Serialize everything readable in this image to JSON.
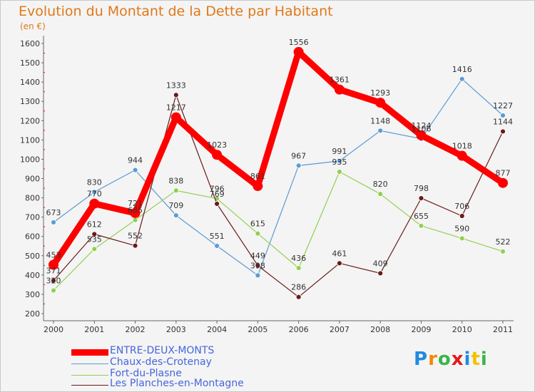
{
  "title": "Evolution du Montant de la Dette par Habitant",
  "subtitle": "(en €)",
  "logo": {
    "text": "Proxiti",
    "colors": [
      "#1f8be0",
      "#f08a00",
      "#3cb44a",
      "#e5191d",
      "#1f8be0",
      "#f0c300",
      "#3cb44a"
    ]
  },
  "chart_data": {
    "type": "line",
    "x": [
      "2000",
      "2001",
      "2002",
      "2003",
      "2004",
      "2005",
      "2006",
      "2007",
      "2008",
      "2009",
      "2010",
      "2011"
    ],
    "ylim": [
      200,
      1600
    ],
    "yticks": [
      200,
      300,
      400,
      500,
      600,
      700,
      800,
      900,
      1000,
      1100,
      1200,
      1300,
      1400,
      1500,
      1600
    ],
    "grid": false,
    "legend_position": "bottom-left",
    "series": [
      {
        "name": "ENTRE-DEUX-MONTS",
        "color": "#ff0000",
        "values": [
          453,
          770,
          721,
          1217,
          1023,
          861,
          1556,
          1361,
          1293,
          1124,
          1018,
          877
        ]
      },
      {
        "name": "Chaux-des-Crotenay",
        "color": "#5b9bd5",
        "values": [
          673,
          830,
          944,
          709,
          551,
          398,
          967,
          991,
          1148,
          1106,
          1416,
          1227
        ]
      },
      {
        "name": "Fort-du-Plasne",
        "color": "#92d050",
        "values": [
          320,
          535,
          685,
          838,
          796,
          615,
          436,
          935,
          820,
          655,
          590,
          522
        ]
      },
      {
        "name": "Les Planches-en-Montagne",
        "color": "#6b1a1a",
        "values": [
          371,
          612,
          552,
          1333,
          769,
          449,
          286,
          461,
          409,
          798,
          706,
          1144
        ]
      }
    ]
  }
}
